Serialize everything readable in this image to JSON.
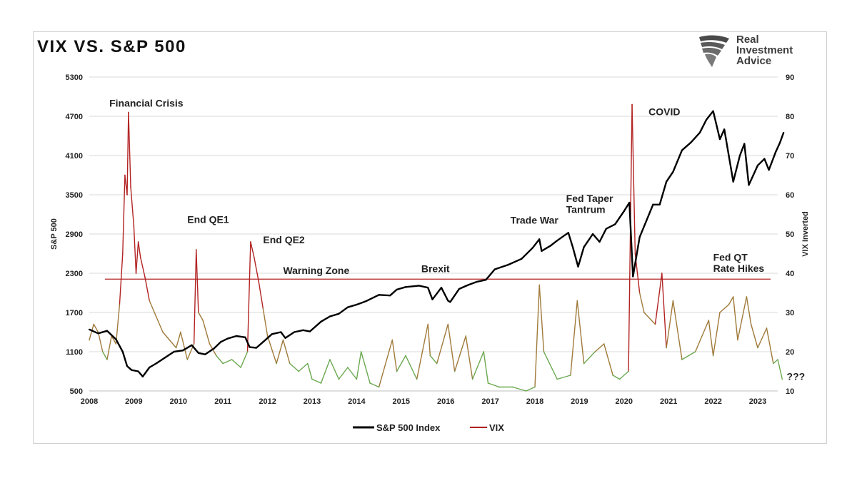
{
  "header": {
    "title": "VIX VS. S&P 500",
    "logo_lines": [
      "Real",
      "Investment",
      "Advice"
    ]
  },
  "chart_data": {
    "type": "line",
    "title": "VIX VS. S&P 500",
    "ylabel": "S&P 500",
    "y2label": "VIX Inverted",
    "ylim": [
      500,
      5300
    ],
    "y2lim": [
      10,
      90
    ],
    "xlim": [
      2008,
      2023.7
    ],
    "yticks": [
      5300,
      4700,
      4100,
      3500,
      2900,
      2300,
      1700,
      1100,
      500
    ],
    "y2ticks": [
      90,
      80,
      70,
      60,
      50,
      40,
      30,
      20,
      10
    ],
    "xticks": [
      2008,
      2009,
      2010,
      2011,
      2012,
      2013,
      2014,
      2015,
      2016,
      2017,
      2018,
      2019,
      2020,
      2021,
      2022,
      2023
    ],
    "grid": true,
    "legend_position": "bottom",
    "warning_line": {
      "axis": "right",
      "value": 38.5,
      "label": "Warning Zone"
    },
    "colors": {
      "sp500": "#000000",
      "vix_low": "#6aa84f",
      "vix_mid": "#a07a3a",
      "vix_high": "#b22222",
      "warning": "#b22222",
      "grid": "#d9d9d9"
    },
    "annotations": [
      {
        "text": "Financial Crisis",
        "x": 2008.45,
        "y_right": 82.5
      },
      {
        "text": "End QE1",
        "x": 2010.2,
        "y_right": 52.8
      },
      {
        "text": "End QE2",
        "x": 2011.9,
        "y_right": 47.6
      },
      {
        "text": "Warning Zone",
        "x": 2012.35,
        "y_right": 39.8
      },
      {
        "text": "Brexit",
        "x": 2015.45,
        "y_right": 40.3
      },
      {
        "text": "Trade War",
        "x": 2017.45,
        "y_right": 52.6
      },
      {
        "text": "Fed Taper",
        "x": 2018.7,
        "y_right": 58.2
      },
      {
        "text": "Tantrum",
        "x": 2018.7,
        "y_right": 55.4
      },
      {
        "text": "COVID",
        "x": 2020.55,
        "y_right": 80.3
      },
      {
        "text": "Fed QT",
        "x": 2022.0,
        "y_right": 43.2
      },
      {
        "text": "Rate Hikes",
        "x": 2022.0,
        "y_right": 40.4
      },
      {
        "text": "???",
        "x": 2023.65,
        "y_right": 12.8
      }
    ],
    "series": [
      {
        "name": "S&P 500 Index",
        "axis": "left",
        "points": [
          [
            2008.0,
            1440
          ],
          [
            2008.2,
            1380
          ],
          [
            2008.4,
            1420
          ],
          [
            2008.6,
            1290
          ],
          [
            2008.75,
            1100
          ],
          [
            2008.85,
            880
          ],
          [
            2008.95,
            820
          ],
          [
            2009.1,
            800
          ],
          [
            2009.2,
            720
          ],
          [
            2009.35,
            860
          ],
          [
            2009.5,
            920
          ],
          [
            2009.7,
            1010
          ],
          [
            2009.9,
            1100
          ],
          [
            2010.1,
            1120
          ],
          [
            2010.3,
            1200
          ],
          [
            2010.45,
            1080
          ],
          [
            2010.6,
            1060
          ],
          [
            2010.8,
            1150
          ],
          [
            2010.95,
            1250
          ],
          [
            2011.1,
            1300
          ],
          [
            2011.3,
            1340
          ],
          [
            2011.5,
            1320
          ],
          [
            2011.6,
            1170
          ],
          [
            2011.75,
            1160
          ],
          [
            2011.9,
            1250
          ],
          [
            2012.1,
            1370
          ],
          [
            2012.3,
            1400
          ],
          [
            2012.4,
            1310
          ],
          [
            2012.6,
            1400
          ],
          [
            2012.8,
            1430
          ],
          [
            2012.95,
            1410
          ],
          [
            2013.2,
            1560
          ],
          [
            2013.4,
            1640
          ],
          [
            2013.6,
            1680
          ],
          [
            2013.8,
            1780
          ],
          [
            2014.0,
            1820
          ],
          [
            2014.2,
            1870
          ],
          [
            2014.5,
            1970
          ],
          [
            2014.75,
            1960
          ],
          [
            2014.9,
            2050
          ],
          [
            2015.1,
            2090
          ],
          [
            2015.4,
            2110
          ],
          [
            2015.6,
            2080
          ],
          [
            2015.7,
            1900
          ],
          [
            2015.9,
            2080
          ],
          [
            2016.05,
            1880
          ],
          [
            2016.1,
            1860
          ],
          [
            2016.3,
            2060
          ],
          [
            2016.5,
            2120
          ],
          [
            2016.7,
            2170
          ],
          [
            2016.9,
            2200
          ],
          [
            2017.1,
            2360
          ],
          [
            2017.4,
            2430
          ],
          [
            2017.7,
            2520
          ],
          [
            2017.95,
            2690
          ],
          [
            2018.1,
            2820
          ],
          [
            2018.15,
            2640
          ],
          [
            2018.35,
            2720
          ],
          [
            2018.5,
            2800
          ],
          [
            2018.75,
            2920
          ],
          [
            2018.85,
            2700
          ],
          [
            2018.97,
            2400
          ],
          [
            2019.1,
            2700
          ],
          [
            2019.3,
            2900
          ],
          [
            2019.45,
            2780
          ],
          [
            2019.6,
            2980
          ],
          [
            2019.8,
            3050
          ],
          [
            2020.0,
            3250
          ],
          [
            2020.12,
            3380
          ],
          [
            2020.2,
            2250
          ],
          [
            2020.35,
            2850
          ],
          [
            2020.5,
            3100
          ],
          [
            2020.65,
            3350
          ],
          [
            2020.8,
            3350
          ],
          [
            2020.95,
            3700
          ],
          [
            2021.1,
            3850
          ],
          [
            2021.3,
            4180
          ],
          [
            2021.5,
            4300
          ],
          [
            2021.7,
            4450
          ],
          [
            2021.85,
            4650
          ],
          [
            2022.0,
            4780
          ],
          [
            2022.15,
            4350
          ],
          [
            2022.25,
            4500
          ],
          [
            2022.4,
            3900
          ],
          [
            2022.45,
            3700
          ],
          [
            2022.6,
            4100
          ],
          [
            2022.7,
            4280
          ],
          [
            2022.8,
            3650
          ],
          [
            2022.9,
            3800
          ],
          [
            2023.0,
            3950
          ],
          [
            2023.15,
            4050
          ],
          [
            2023.25,
            3880
          ],
          [
            2023.4,
            4150
          ],
          [
            2023.5,
            4300
          ],
          [
            2023.58,
            4450
          ]
        ]
      },
      {
        "name": "VIX",
        "axis": "right",
        "points": [
          [
            2008.0,
            23
          ],
          [
            2008.1,
            27
          ],
          [
            2008.2,
            25
          ],
          [
            2008.3,
            20
          ],
          [
            2008.4,
            18
          ],
          [
            2008.5,
            24
          ],
          [
            2008.6,
            22
          ],
          [
            2008.68,
            32
          ],
          [
            2008.75,
            45
          ],
          [
            2008.8,
            65
          ],
          [
            2008.85,
            60
          ],
          [
            2008.88,
            81
          ],
          [
            2008.93,
            62
          ],
          [
            2009.0,
            52
          ],
          [
            2009.05,
            40
          ],
          [
            2009.1,
            48
          ],
          [
            2009.15,
            44
          ],
          [
            2009.25,
            39
          ],
          [
            2009.35,
            33
          ],
          [
            2009.5,
            29
          ],
          [
            2009.65,
            25
          ],
          [
            2009.8,
            23
          ],
          [
            2009.95,
            21
          ],
          [
            2010.05,
            25
          ],
          [
            2010.2,
            18
          ],
          [
            2010.35,
            22
          ],
          [
            2010.4,
            46
          ],
          [
            2010.45,
            30
          ],
          [
            2010.55,
            28
          ],
          [
            2010.7,
            22
          ],
          [
            2010.85,
            19
          ],
          [
            2011.0,
            17
          ],
          [
            2011.2,
            18
          ],
          [
            2011.4,
            16
          ],
          [
            2011.55,
            20
          ],
          [
            2011.62,
            48
          ],
          [
            2011.7,
            44
          ],
          [
            2011.8,
            38
          ],
          [
            2011.9,
            31
          ],
          [
            2012.0,
            24
          ],
          [
            2012.2,
            17
          ],
          [
            2012.35,
            23
          ],
          [
            2012.5,
            17
          ],
          [
            2012.7,
            15
          ],
          [
            2012.9,
            17
          ],
          [
            2013.0,
            13
          ],
          [
            2013.2,
            12
          ],
          [
            2013.4,
            18
          ],
          [
            2013.6,
            13
          ],
          [
            2013.8,
            16
          ],
          [
            2014.0,
            13
          ],
          [
            2014.1,
            20
          ],
          [
            2014.3,
            12
          ],
          [
            2014.5,
            11
          ],
          [
            2014.8,
            23
          ],
          [
            2014.9,
            15
          ],
          [
            2015.1,
            19
          ],
          [
            2015.35,
            13
          ],
          [
            2015.6,
            27
          ],
          [
            2015.65,
            19
          ],
          [
            2015.8,
            17
          ],
          [
            2016.05,
            27
          ],
          [
            2016.2,
            15
          ],
          [
            2016.45,
            24
          ],
          [
            2016.6,
            13
          ],
          [
            2016.85,
            20
          ],
          [
            2016.95,
            12
          ],
          [
            2017.2,
            11
          ],
          [
            2017.5,
            11
          ],
          [
            2017.8,
            10
          ],
          [
            2018.0,
            11
          ],
          [
            2018.1,
            37
          ],
          [
            2018.2,
            20
          ],
          [
            2018.5,
            13
          ],
          [
            2018.8,
            14
          ],
          [
            2018.95,
            33
          ],
          [
            2019.1,
            17
          ],
          [
            2019.35,
            20
          ],
          [
            2019.55,
            22
          ],
          [
            2019.75,
            14
          ],
          [
            2019.9,
            13
          ],
          [
            2020.1,
            15
          ],
          [
            2020.18,
            83
          ],
          [
            2020.25,
            45
          ],
          [
            2020.35,
            35
          ],
          [
            2020.45,
            30
          ],
          [
            2020.7,
            27
          ],
          [
            2020.85,
            40
          ],
          [
            2020.95,
            21
          ],
          [
            2021.1,
            33
          ],
          [
            2021.3,
            18
          ],
          [
            2021.6,
            20
          ],
          [
            2021.9,
            28
          ],
          [
            2022.0,
            19
          ],
          [
            2022.15,
            30
          ],
          [
            2022.35,
            32
          ],
          [
            2022.45,
            34
          ],
          [
            2022.55,
            23
          ],
          [
            2022.75,
            34
          ],
          [
            2022.85,
            27
          ],
          [
            2023.0,
            21
          ],
          [
            2023.2,
            26
          ],
          [
            2023.35,
            17
          ],
          [
            2023.45,
            18
          ],
          [
            2023.55,
            13
          ]
        ]
      }
    ]
  }
}
